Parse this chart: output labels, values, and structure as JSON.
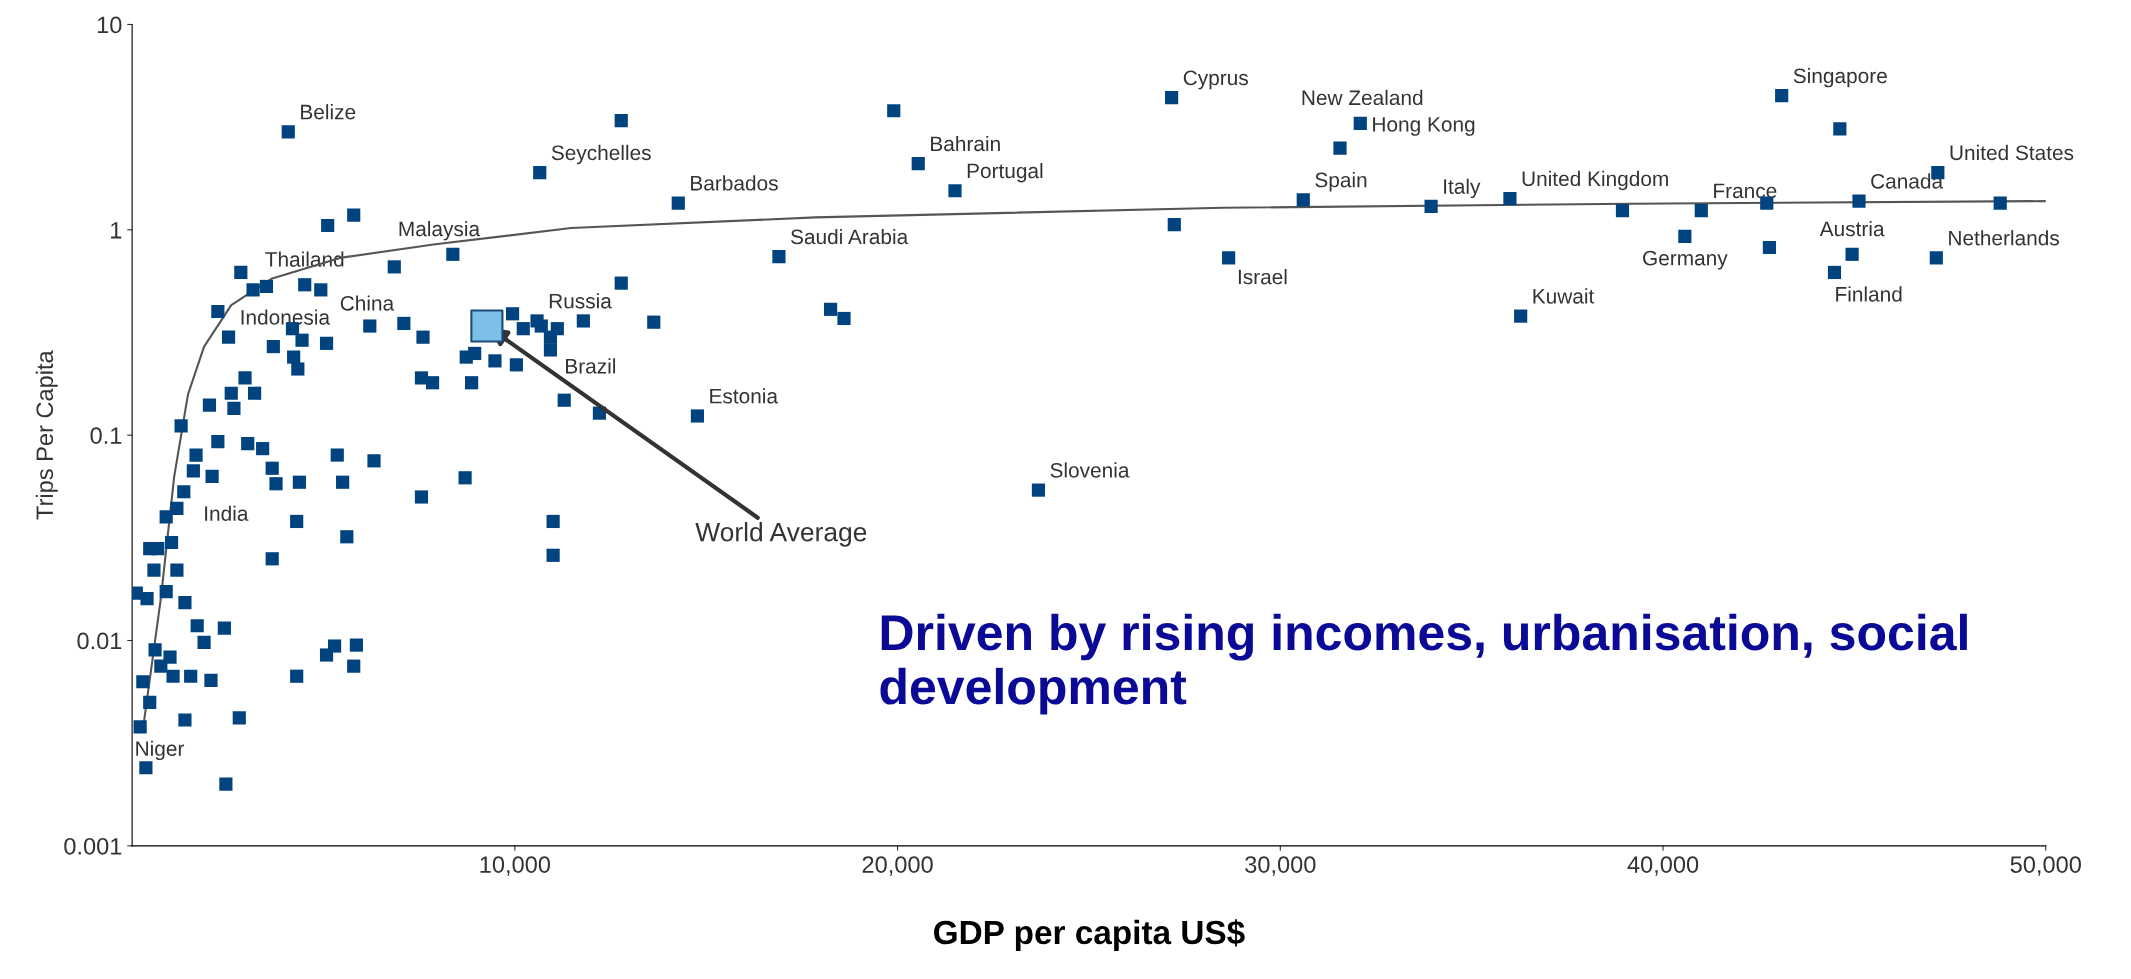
{
  "chart_data": {
    "type": "scatter",
    "xlabel": "GDP per capita US$",
    "ylabel": "Trips Per Capita",
    "log": "y",
    "xlim": [
      0,
      50000
    ],
    "ylim": [
      0.001,
      10
    ],
    "xticks": [
      {
        "value": 10000,
        "label": "10,000"
      },
      {
        "value": 20000,
        "label": "20,000"
      },
      {
        "value": 30000,
        "label": "30,000"
      },
      {
        "value": 40000,
        "label": "40,000"
      },
      {
        "value": 50000,
        "label": "50,000"
      }
    ],
    "yticks": [
      0.001,
      0.01,
      0.1,
      1,
      10
    ],
    "grid": false,
    "legend": false,
    "marker": "square",
    "series": [
      {
        "color": "#00437f",
        "x": [
          4080,
          12780,
          10650,
          19900,
          20540,
          21500,
          14270,
          27160,
          32090,
          31560,
          30600,
          27230,
          28650,
          33940,
          36000,
          36280,
          38940,
          40570,
          41000,
          42710,
          42780,
          43100,
          44620,
          44940,
          44480,
          45120,
          47180,
          47140,
          48810,
          23680,
          14770,
          16900,
          18250,
          18600,
          9940,
          10690,
          11110,
          10220,
          10930,
          10580,
          11790,
          12780,
          13630,
          8950,
          9480,
          10040,
          10930,
          8730,
          8870,
          11290,
          12210,
          11000,
          11000,
          8700,
          7600,
          7100,
          6210,
          7560,
          7850,
          7560,
          6320,
          5610,
          5860,
          5790,
          8380,
          6850,
          5790,
          5110,
          4510,
          4930,
          2840,
          3160,
          3510,
          2240,
          2520,
          3690,
          4190,
          4440,
          4220,
          4330,
          5080,
          3200,
          2950,
          2590,
          2660,
          2020,
          1280,
          2240,
          1600,
          2090,
          3020,
          3410,
          3660,
          3760,
          4370,
          4300,
          5360,
          5500,
          3660,
          1670,
          1350,
          1170,
          890,
          1030,
          460,
          670,
          570,
          390,
          110,
          1700,
          2410,
          990,
          1070,
          1530,
          2060,
          280,
          460,
          210,
          360,
          1380,
          2800,
          2450,
          4300,
          5290,
          5080,
          1880,
          890,
          600,
          750,
          1170,
          1380
        ],
        "values": [
          3.0,
          3.4,
          1.9,
          3.8,
          2.1,
          1.55,
          1.35,
          4.4,
          3.3,
          2.5,
          1.4,
          1.06,
          0.73,
          1.3,
          1.42,
          0.38,
          1.24,
          0.93,
          1.24,
          1.35,
          0.82,
          4.5,
          3.1,
          0.76,
          0.62,
          1.38,
          1.9,
          0.73,
          1.35,
          0.054,
          0.124,
          0.74,
          0.41,
          0.37,
          0.39,
          0.34,
          0.33,
          0.33,
          0.3,
          0.36,
          0.36,
          0.55,
          0.355,
          0.25,
          0.23,
          0.22,
          0.26,
          0.24,
          0.18,
          0.148,
          0.128,
          0.038,
          0.026,
          0.062,
          0.3,
          0.35,
          0.34,
          0.19,
          0.18,
          0.05,
          0.075,
          0.032,
          0.0095,
          0.0075,
          0.76,
          0.66,
          1.18,
          1.05,
          0.54,
          0.51,
          0.62,
          0.51,
          0.53,
          0.4,
          0.3,
          0.27,
          0.33,
          0.29,
          0.24,
          0.21,
          0.28,
          0.16,
          0.19,
          0.16,
          0.135,
          0.14,
          0.111,
          0.093,
          0.067,
          0.063,
          0.091,
          0.086,
          0.069,
          0.058,
          0.059,
          0.038,
          0.08,
          0.059,
          0.025,
          0.08,
          0.053,
          0.044,
          0.04,
          0.03,
          0.028,
          0.028,
          0.022,
          0.016,
          0.017,
          0.0118,
          0.0115,
          0.0083,
          0.0067,
          0.0067,
          0.0064,
          0.0063,
          0.005,
          0.0038,
          0.0024,
          0.0041,
          0.0042,
          0.002,
          0.0067,
          0.0094,
          0.0085,
          0.0098,
          0.0173,
          0.009,
          0.0075,
          0.022,
          0.0153
        ]
      },
      {
        "type": "scatter",
        "color": "#7cc0ea",
        "x": [
          9270
        ],
        "values": [
          0.34
        ]
      },
      {
        "type": "line",
        "color": "#555555",
        "marker": "none",
        "x": [
          280,
          750,
          1100,
          1460,
          1880,
          2590,
          3660,
          5430,
          7920,
          11470,
          17860,
          28510,
          39160,
          49980
        ],
        "values": [
          0.00366,
          0.016,
          0.063,
          0.158,
          0.27,
          0.43,
          0.58,
          0.73,
          0.85,
          1.02,
          1.15,
          1.28,
          1.34,
          1.38
        ]
      }
    ],
    "annotations": [
      {
        "text": "World Average",
        "x": 9270,
        "y": 0.34
      },
      "Driven by rising incomes, urbanisation, social development",
      {
        "text": "Belize",
        "x": 4080,
        "y": 3.0
      },
      {
        "text": "Seychelles",
        "x": 10650,
        "y": 1.9
      },
      {
        "text": "Barbados",
        "x": 14270,
        "y": 1.35
      },
      {
        "text": "Bahrain",
        "x": 20540,
        "y": 2.1
      },
      {
        "text": "Portugal",
        "x": 21500,
        "y": 1.55
      },
      {
        "text": "Cyprus",
        "x": 27160,
        "y": 4.4
      },
      {
        "text": "New Zealand",
        "x": 31560,
        "y": 2.5
      },
      {
        "text": "Hong Kong",
        "x": 32090,
        "y": 3.3
      },
      {
        "text": "Spain",
        "x": 30600,
        "y": 1.4
      },
      {
        "text": "United Kingdom",
        "x": 36000,
        "y": 1.42
      },
      {
        "text": "Italy",
        "x": 33940,
        "y": 1.3
      },
      {
        "text": "Israel",
        "x": 28650,
        "y": 0.73
      },
      {
        "text": "Kuwait",
        "x": 36280,
        "y": 0.38
      },
      {
        "text": "France",
        "x": 41000,
        "y": 1.24
      },
      {
        "text": "Germany",
        "x": 40570,
        "y": 0.93
      },
      {
        "text": "Singapore",
        "x": 43100,
        "y": 4.5
      },
      {
        "text": "Canada",
        "x": 45120,
        "y": 1.38
      },
      {
        "text": "United States",
        "x": 47180,
        "y": 1.9
      },
      {
        "text": "Austria",
        "x": 44940,
        "y": 0.76
      },
      {
        "text": "Finland",
        "x": 44480,
        "y": 0.62
      },
      {
        "text": "Netherlands",
        "x": 47140,
        "y": 0.73
      },
      {
        "text": "Slovenia",
        "x": 23680,
        "y": 0.054
      },
      {
        "text": "Estonia",
        "x": 14770,
        "y": 0.124
      },
      {
        "text": "Saudi Arabia",
        "x": 16900,
        "y": 0.74
      },
      {
        "text": "Russia",
        "x": 10580,
        "y": 0.36
      },
      {
        "text": "Brazil",
        "x": 10930,
        "y": 0.26
      },
      {
        "text": "Malaysia",
        "x": 8380,
        "y": 0.76
      },
      {
        "text": "Thailand",
        "x": 4510,
        "y": 0.54
      },
      {
        "text": "China",
        "x": 4190,
        "y": 0.33
      },
      {
        "text": "Indonesia",
        "x": 2520,
        "y": 0.3
      },
      {
        "text": "India",
        "x": 1350,
        "y": 0.053
      },
      {
        "text": "Niger",
        "x": 210,
        "y": 0.0038
      }
    ]
  }
}
